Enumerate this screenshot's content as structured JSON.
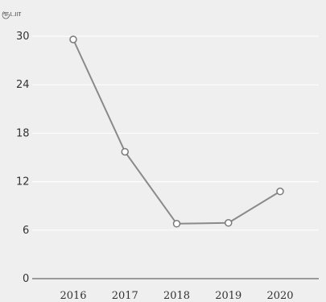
{
  "chart_data": {
    "type": "line",
    "unit_label": "ரூபா",
    "categories": [
      "2016",
      "2017",
      "2018",
      "2019",
      "2020"
    ],
    "values": [
      29.6,
      15.7,
      6.8,
      6.9,
      10.8
    ],
    "ylim": [
      0,
      30
    ],
    "yticks": [
      0,
      6,
      12,
      18,
      24,
      30
    ],
    "grid": true,
    "legend": "none",
    "colors": {
      "line": "#8a8a8a",
      "marker_fill": "#ffffff",
      "marker_stroke": "#7a7a7a",
      "grid": "#ffffff",
      "axis": "#444444",
      "background": "#efefef"
    }
  }
}
